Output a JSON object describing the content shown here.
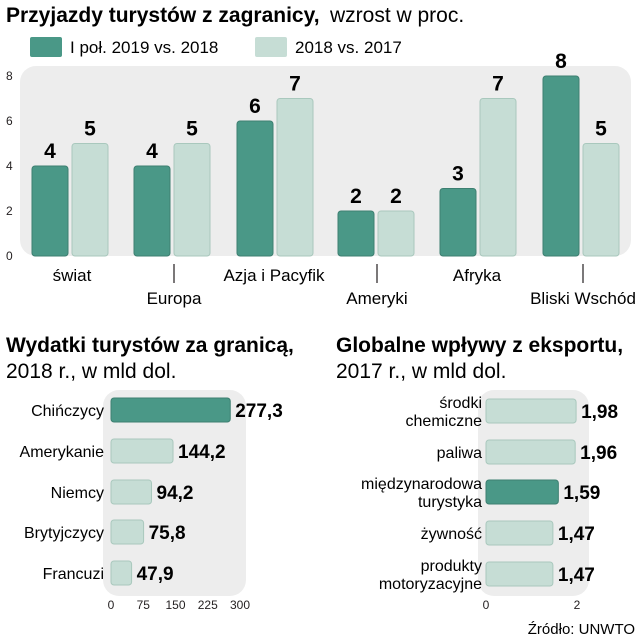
{
  "colors": {
    "primary": "#4a9887",
    "primary_stroke": "#3d7f71",
    "light": "#c6ddd5",
    "light_stroke": "#a9c8bd",
    "panel": "#ededed",
    "text": "#231f20"
  },
  "chart_data": [
    {
      "type": "bar",
      "title": "Przyjazdy turystów z zagranicy,",
      "subtitle": "wzrost w proc.",
      "categories": [
        "świat",
        "Europa",
        "Azja i Pacyfik",
        "Ameryki",
        "Afryka",
        "Bliski Wschód"
      ],
      "series": [
        {
          "name": "I poł. 2019 vs. 2018",
          "values": [
            4,
            4,
            6,
            2,
            3,
            8
          ],
          "labels": [
            "4",
            "4",
            "6",
            "2",
            "3",
            "8"
          ]
        },
        {
          "name": "2018 vs. 2017",
          "values": [
            5,
            5,
            7,
            2,
            7,
            5
          ],
          "labels": [
            "5",
            "5",
            "7",
            "2",
            "7",
            "5"
          ]
        }
      ],
      "ylim": [
        0,
        8
      ],
      "yticks": [
        "0",
        "2",
        "4",
        "6",
        "8"
      ],
      "legend_position": "top",
      "grid": false
    },
    {
      "type": "bar",
      "orientation": "horizontal",
      "title": "Wydatki turystów za granicą,",
      "subtitle": "2018 r., w mld dol.",
      "categories": [
        "Chińczycy",
        "Amerykanie",
        "Niemcy",
        "Brytyjczycy",
        "Francuzi"
      ],
      "values": [
        277.3,
        144.2,
        94.2,
        75.8,
        47.9
      ],
      "labels": [
        "277,3",
        "144,2",
        "94,2",
        "75,8",
        "47,9"
      ],
      "highlight_index": 0,
      "xlim": [
        0,
        300
      ],
      "xticks": [
        "0",
        "75",
        "150",
        "225",
        "300"
      ]
    },
    {
      "type": "bar",
      "orientation": "horizontal",
      "title": "Globalne wpływy z eksportu,",
      "subtitle": "2017 r., w mld dol.",
      "categories": [
        [
          "środki",
          "chemiczne"
        ],
        [
          "paliwa"
        ],
        [
          "międzynarodowa",
          "turystyka"
        ],
        [
          "żywność"
        ],
        [
          "produkty",
          "motoryzacyjne"
        ]
      ],
      "values": [
        1.98,
        1.96,
        1.59,
        1.47,
        1.47
      ],
      "labels": [
        "1,98",
        "1,96",
        "1,59",
        "1,47",
        "1,47"
      ],
      "highlight_index": 2,
      "xlim": [
        0,
        2
      ],
      "xticks": [
        "0",
        "2"
      ]
    }
  ],
  "source": "Źródło: UNWTO"
}
